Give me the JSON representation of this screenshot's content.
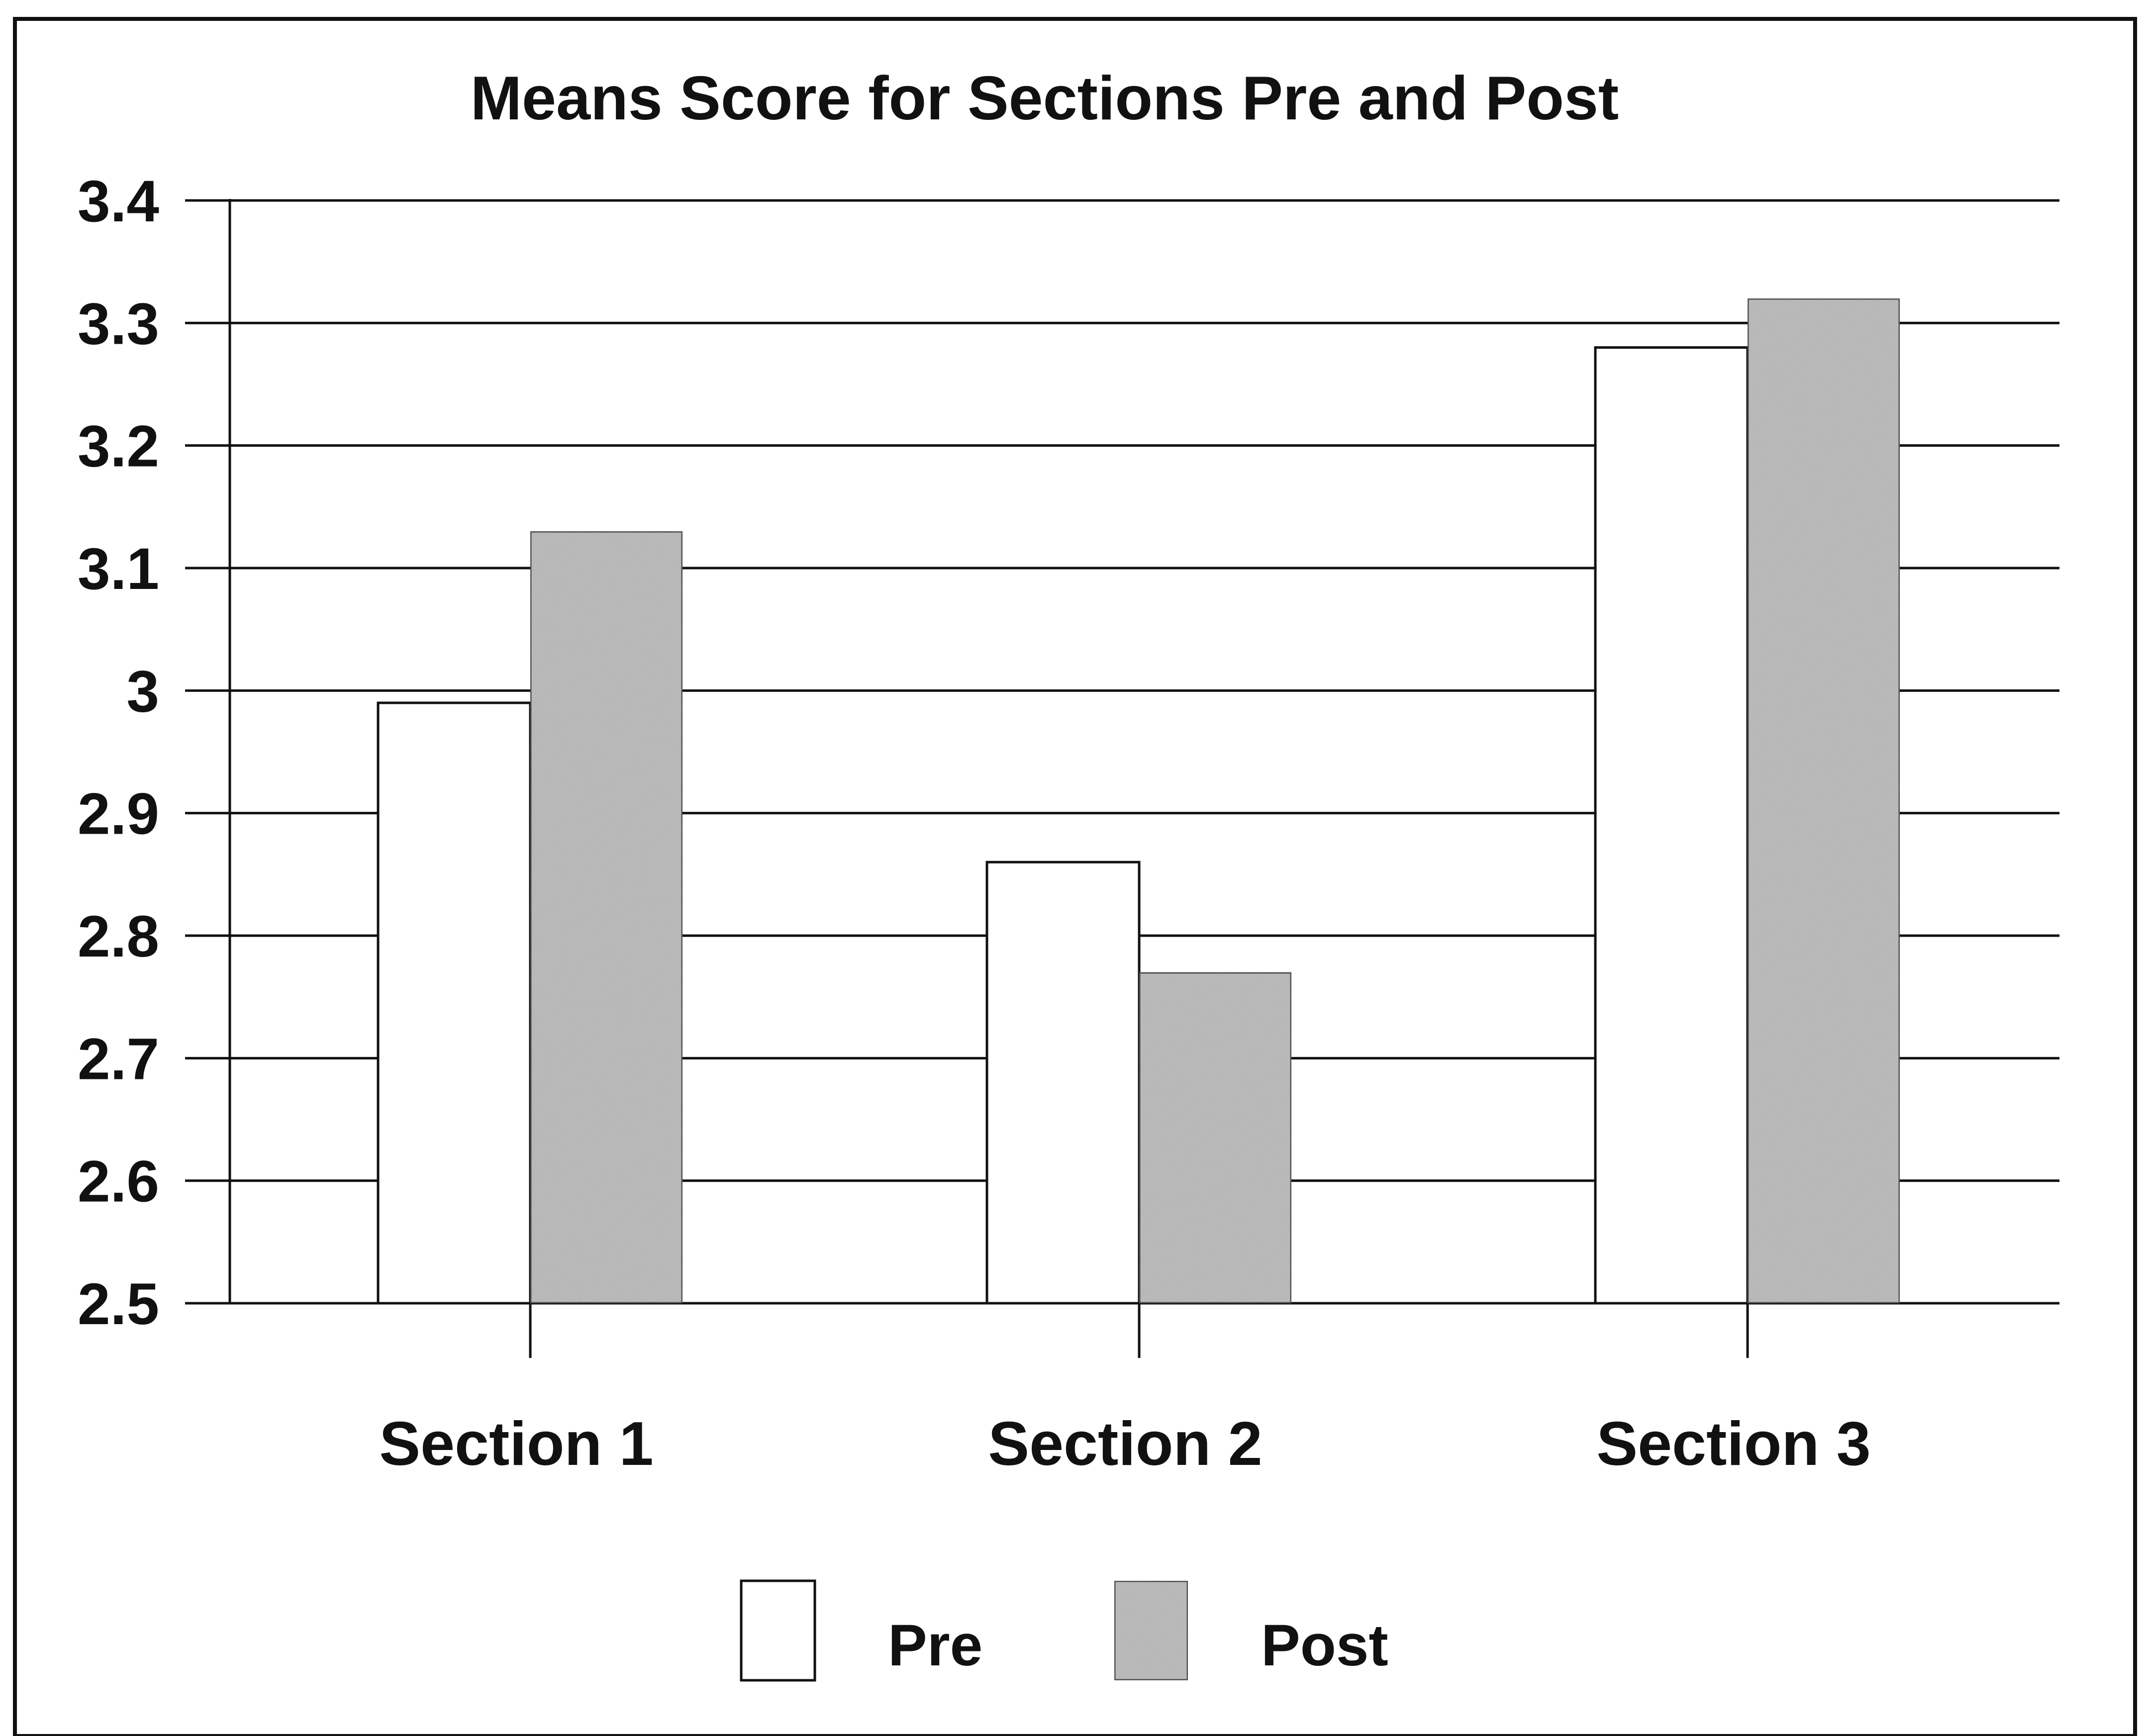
{
  "chart_data": {
    "type": "bar",
    "title": "Means Score for Sections Pre and Post",
    "xlabel": "",
    "ylabel": "",
    "categories": [
      "Section 1",
      "Section 2",
      "Section 3"
    ],
    "series": [
      {
        "name": "Pre",
        "values": [
          2.99,
          2.86,
          3.28
        ]
      },
      {
        "name": "Post",
        "values": [
          3.13,
          2.77,
          3.32
        ]
      }
    ],
    "ylim": [
      2.5,
      3.4
    ],
    "yticks": [
      3.4,
      3.3,
      3.2,
      3.1,
      3,
      2.9,
      2.8,
      2.7,
      2.6,
      2.5
    ],
    "ytick_labels": [
      "3.4",
      "3.3",
      "3.2",
      "3.1",
      "3",
      "2.9",
      "2.8",
      "2.7",
      "2.6",
      "2.5"
    ],
    "grid": true,
    "legend_position": "bottom",
    "colors": {
      "Pre": "#ffffff",
      "Post": "#b8b8b8"
    }
  }
}
